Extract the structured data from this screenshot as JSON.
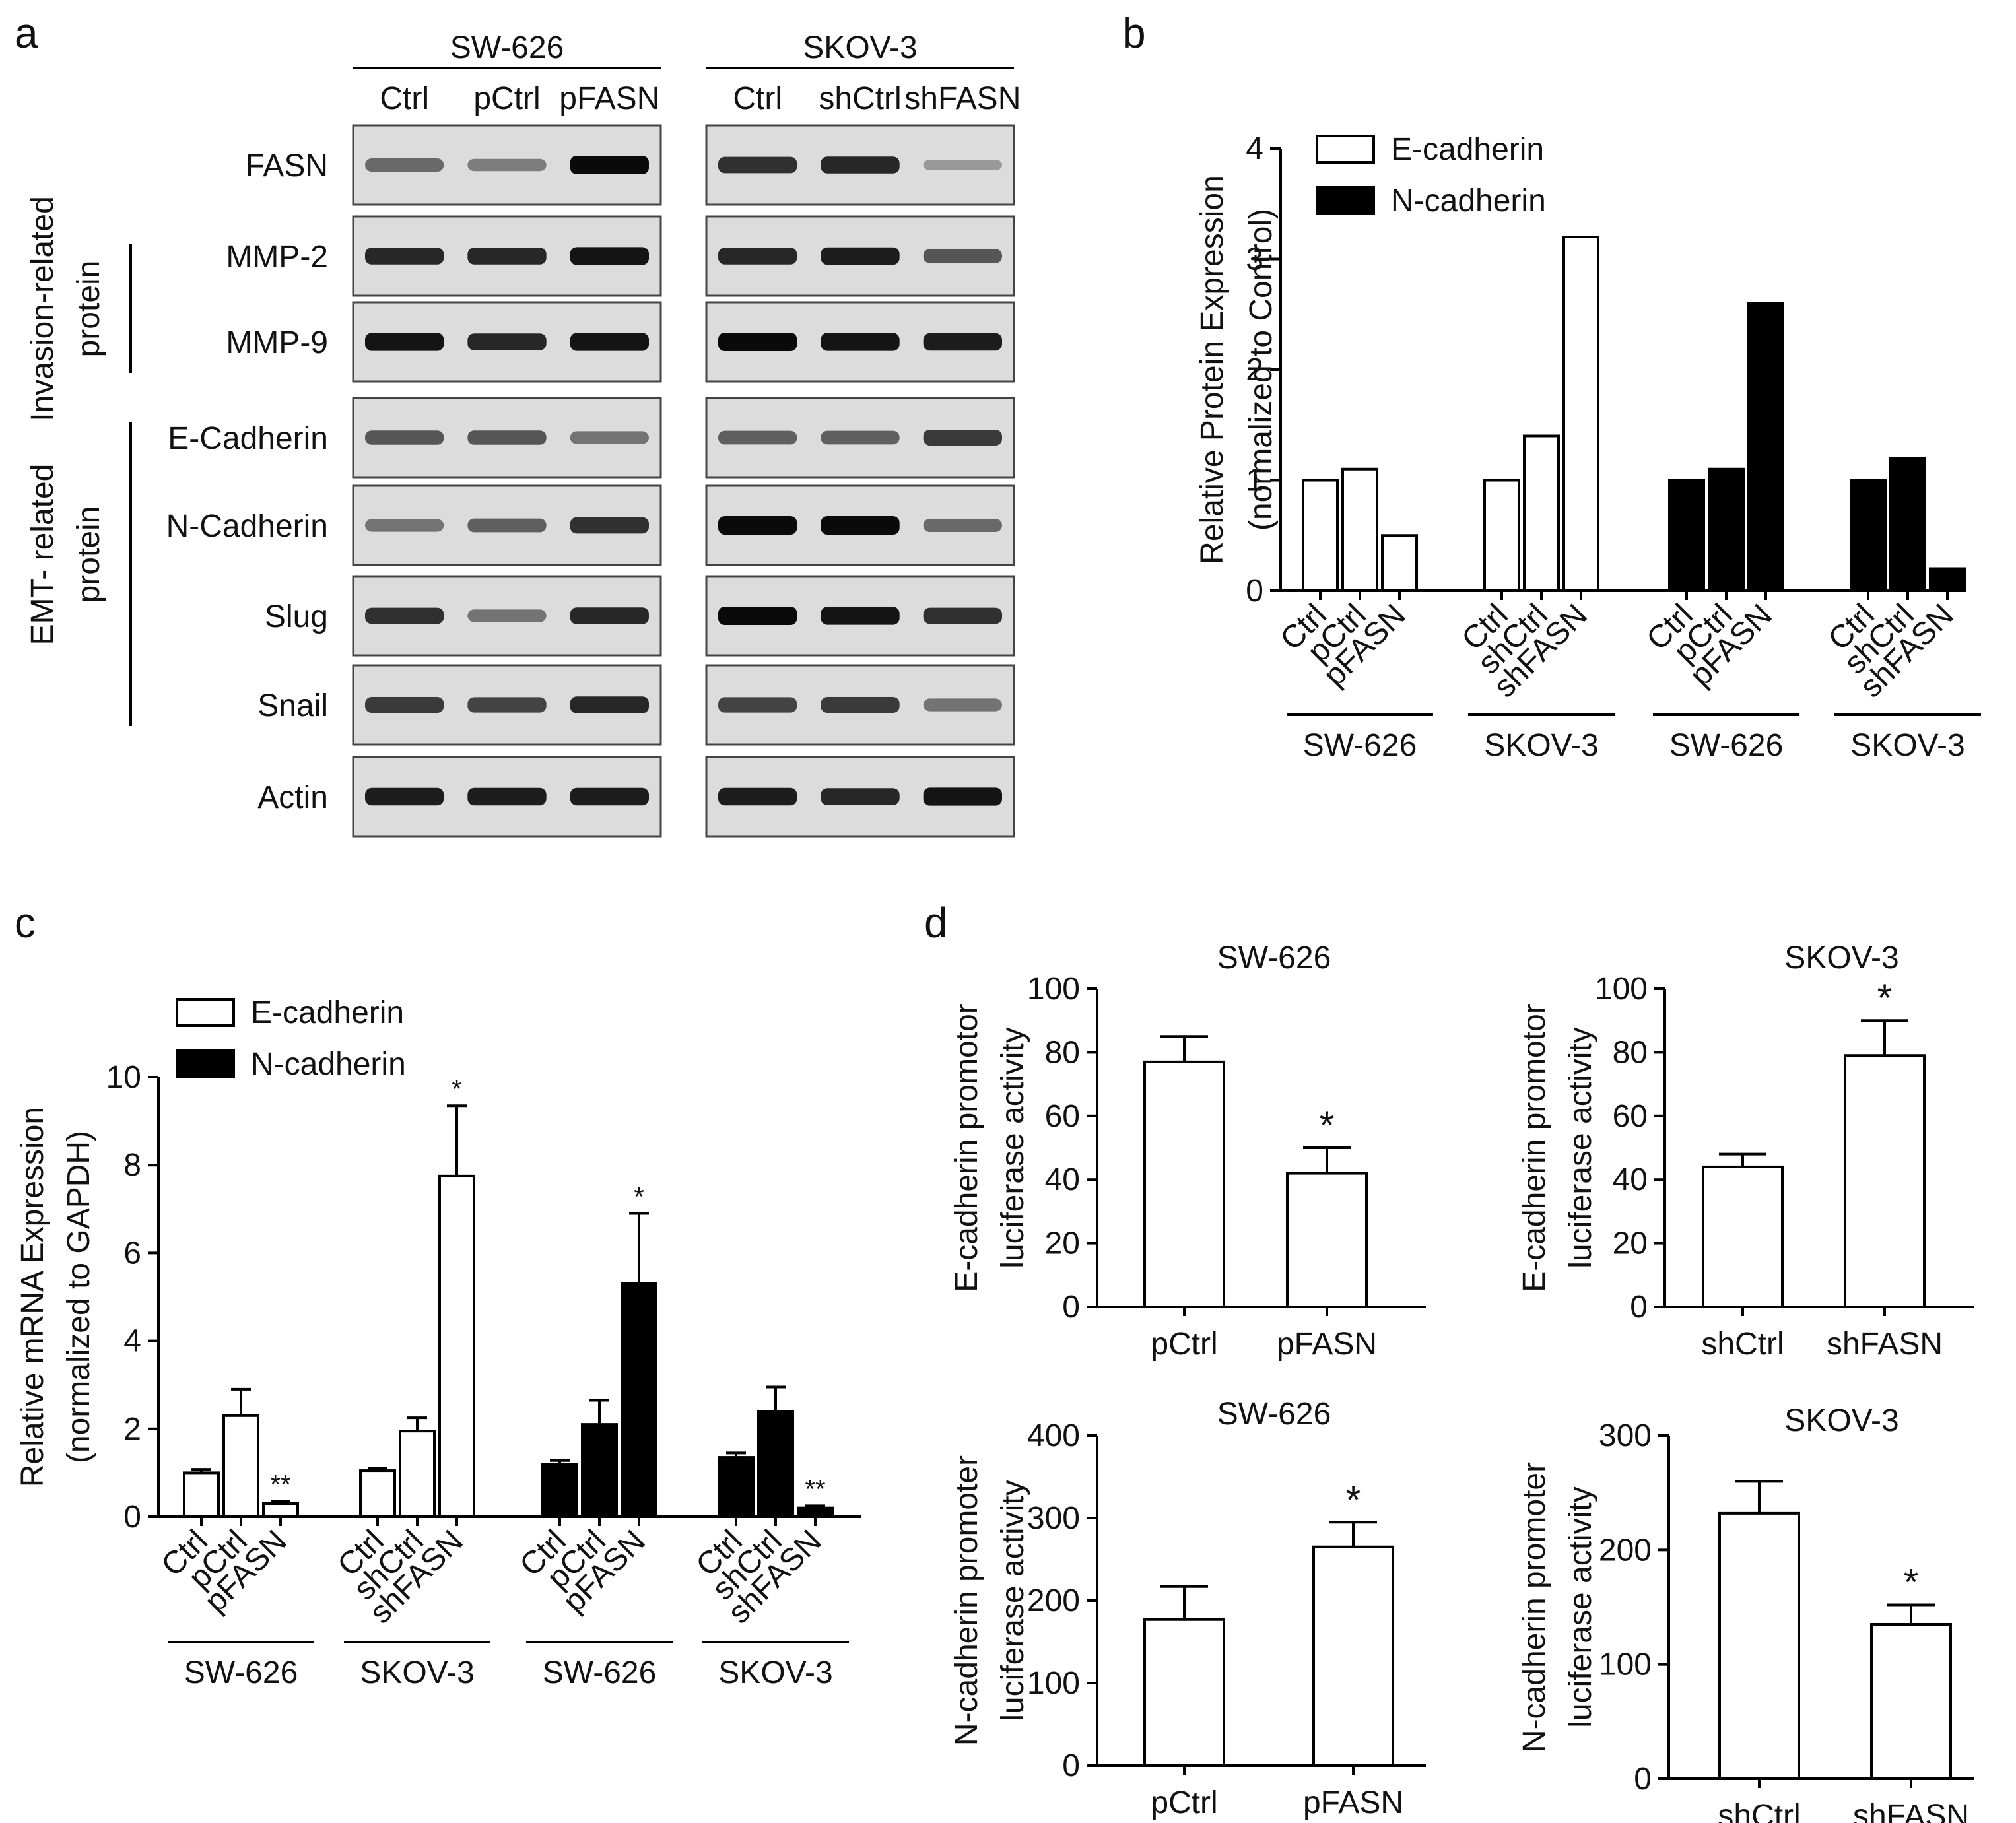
{
  "panel_letters": [
    "a",
    "b",
    "c",
    "d"
  ],
  "panel_a": {
    "groups": [
      {
        "name": "SW-626",
        "lanes": [
          "Ctrl",
          "pCtrl",
          "pFASN"
        ]
      },
      {
        "name": "SKOV-3",
        "lanes": [
          "Ctrl",
          "shCtrl",
          "shFASN"
        ]
      }
    ],
    "rows": [
      "FASN",
      "MMP-2",
      "MMP-9",
      "E-Cadherin",
      "N-Cadherin",
      "Slug",
      "Snail",
      "Actin"
    ],
    "side_labels": [
      {
        "text": [
          "Invasion-related",
          "protein"
        ],
        "rows": [
          "MMP-2",
          "MMP-9"
        ]
      },
      {
        "text": [
          "EMT- related",
          "protein"
        ],
        "rows": [
          "E-Cadherin",
          "N-Cadherin",
          "Slug",
          "Snail"
        ]
      }
    ],
    "band_intensity": {
      "FASN": [
        0.5,
        0.4,
        1.0,
        0.8,
        0.85,
        0.25
      ],
      "MMP-2": [
        0.85,
        0.85,
        0.95,
        0.85,
        0.9,
        0.6
      ],
      "MMP-9": [
        0.95,
        0.85,
        0.95,
        1.0,
        0.95,
        0.9
      ],
      "E-Cadherin": [
        0.6,
        0.6,
        0.45,
        0.55,
        0.55,
        0.75
      ],
      "N-Cadherin": [
        0.45,
        0.55,
        0.8,
        1.0,
        1.0,
        0.5
      ],
      "Slug": [
        0.8,
        0.45,
        0.85,
        1.0,
        0.95,
        0.8
      ],
      "Snail": [
        0.75,
        0.7,
        0.85,
        0.7,
        0.75,
        0.45
      ],
      "Actin": [
        0.9,
        0.9,
        0.9,
        0.9,
        0.85,
        0.95
      ]
    }
  },
  "chart_data": [
    {
      "id": "b",
      "type": "bar",
      "ylabel": [
        "Relative Protein Expression",
        "(normalized to Control)"
      ],
      "ylim": [
        0,
        4
      ],
      "yticks": [
        0,
        1,
        2,
        3,
        4
      ],
      "legend": [
        {
          "name": "E-cadherin",
          "fill": "#ffffff"
        },
        {
          "name": "N-cadherin",
          "fill": "#000000"
        }
      ],
      "legend_position": "top-left",
      "groups": [
        {
          "name": "SW-626",
          "series": "E-cadherin",
          "fill": "#ffffff",
          "categories": [
            "Ctrl",
            "pCtrl",
            "pFASN"
          ],
          "values": [
            1.0,
            1.1,
            0.5
          ]
        },
        {
          "name": "SKOV-3",
          "series": "E-cadherin",
          "fill": "#ffffff",
          "categories": [
            "Ctrl",
            "shCtrl",
            "shFASN"
          ],
          "values": [
            1.0,
            1.4,
            3.2
          ]
        },
        {
          "name": "SW-626",
          "series": "N-cadherin",
          "fill": "#000000",
          "categories": [
            "Ctrl",
            "pCtrl",
            "pFASN"
          ],
          "values": [
            1.0,
            1.1,
            2.6
          ]
        },
        {
          "name": "SKOV-3",
          "series": "N-cadherin",
          "fill": "#000000",
          "categories": [
            "Ctrl",
            "shCtrl",
            "shFASN"
          ],
          "values": [
            1.0,
            1.2,
            0.2
          ]
        }
      ]
    },
    {
      "id": "c",
      "type": "bar",
      "ylabel": [
        "Relative mRNA Expression",
        "(normalized to GAPDH)"
      ],
      "ylim": [
        0,
        10
      ],
      "yticks": [
        0,
        2,
        4,
        6,
        8,
        10
      ],
      "legend": [
        {
          "name": "E-cadherin",
          "fill": "#ffffff"
        },
        {
          "name": "N-cadherin",
          "fill": "#000000"
        }
      ],
      "legend_position": "top-left",
      "groups": [
        {
          "name": "SW-626",
          "series": "E-cadherin",
          "fill": "#ffffff",
          "categories": [
            "Ctrl",
            "pCtrl",
            "pFASN"
          ],
          "values": [
            1.0,
            2.3,
            0.3
          ],
          "errors": [
            0.08,
            0.6,
            0.05
          ],
          "marks": [
            "",
            "",
            "**"
          ]
        },
        {
          "name": "SKOV-3",
          "series": "E-cadherin",
          "fill": "#ffffff",
          "categories": [
            "Ctrl",
            "shCtrl",
            "shFASN"
          ],
          "values": [
            1.05,
            1.95,
            7.75
          ],
          "errors": [
            0.05,
            0.3,
            1.6
          ],
          "marks": [
            "",
            "",
            "*"
          ]
        },
        {
          "name": "SW-626",
          "series": "N-cadherin",
          "fill": "#000000",
          "categories": [
            "Ctrl",
            "pCtrl",
            "pFASN"
          ],
          "values": [
            1.2,
            2.1,
            5.3
          ],
          "errors": [
            0.08,
            0.55,
            1.6
          ],
          "marks": [
            "",
            "",
            "*"
          ]
        },
        {
          "name": "SKOV-3",
          "series": "N-cadherin",
          "fill": "#000000",
          "categories": [
            "Ctrl",
            "shCtrl",
            "shFASN"
          ],
          "values": [
            1.35,
            2.4,
            0.2
          ],
          "errors": [
            0.1,
            0.55,
            0.05
          ],
          "marks": [
            "",
            "",
            "**"
          ]
        }
      ]
    },
    {
      "id": "d1",
      "type": "bar",
      "title": "SW-626",
      "ylabel": [
        "E-cadherin promotor",
        "luciferase activity"
      ],
      "ylim": [
        0,
        100
      ],
      "yticks": [
        0,
        20,
        40,
        60,
        80,
        100
      ],
      "categories": [
        "pCtrl",
        "pFASN"
      ],
      "values": [
        77,
        42
      ],
      "errors": [
        8,
        8
      ],
      "marks": [
        "",
        "*"
      ]
    },
    {
      "id": "d2",
      "type": "bar",
      "title": "SKOV-3",
      "ylabel": [
        "E-cadherin promotor",
        "luciferase activity"
      ],
      "ylim": [
        0,
        100
      ],
      "yticks": [
        0,
        20,
        40,
        60,
        80,
        100
      ],
      "categories": [
        "shCtrl",
        "shFASN"
      ],
      "values": [
        44,
        79
      ],
      "errors": [
        4,
        11
      ],
      "marks": [
        "",
        "*"
      ]
    },
    {
      "id": "d3",
      "type": "bar",
      "title": "SW-626",
      "ylabel": [
        "N-cadherin promoter",
        "luciferase activity"
      ],
      "ylim": [
        0,
        400
      ],
      "yticks": [
        0,
        100,
        200,
        300,
        400
      ],
      "categories": [
        "pCtrl",
        "pFASN"
      ],
      "values": [
        177,
        265
      ],
      "errors": [
        40,
        30
      ],
      "marks": [
        "",
        "*"
      ]
    },
    {
      "id": "d4",
      "type": "bar",
      "title": "SKOV-3",
      "ylabel": [
        "N-cadherin promoter",
        "luciferase activity"
      ],
      "ylim": [
        0,
        300
      ],
      "yticks": [
        0,
        100,
        200,
        300
      ],
      "categories": [
        "shCtrl",
        "shFASN"
      ],
      "values": [
        232,
        135
      ],
      "errors": [
        28,
        17
      ],
      "marks": [
        "",
        "*"
      ]
    }
  ]
}
